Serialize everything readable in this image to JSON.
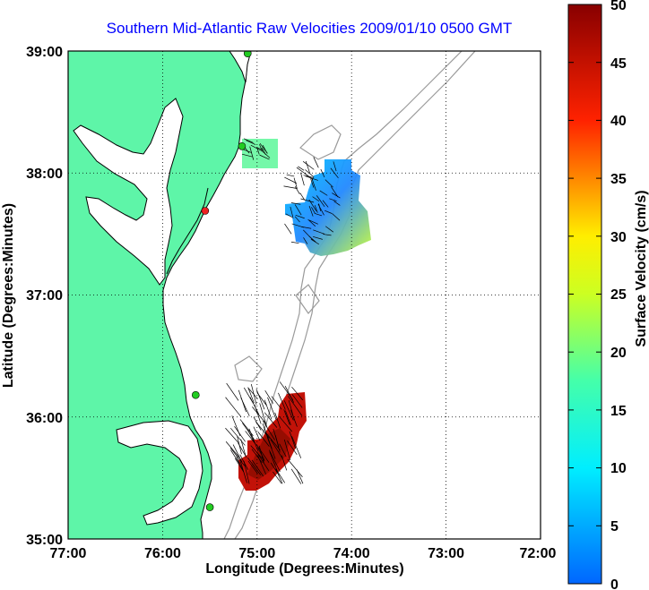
{
  "title": "Southern Mid-Atlantic Raw Velocities 2009/01/10 0500 GMT",
  "axes": {
    "xlabel": "Longitude (Degrees:Minutes)",
    "ylabel": "Latitude (Degrees:Minutes)",
    "x_ticks": [
      "77:00",
      "76:00",
      "75:00",
      "74:00",
      "73:00",
      "72:00"
    ],
    "y_ticks": [
      "39:00",
      "38:00",
      "37:00",
      "36:00",
      "35:00"
    ],
    "x_range_deg_west": [
      77,
      72
    ],
    "y_range_deg_north": [
      35,
      39
    ],
    "grid": "dotted"
  },
  "colorbar": {
    "label": "Surface Velocity (cm/s)",
    "ticks": [
      "50",
      "45",
      "40",
      "35",
      "30",
      "25",
      "20",
      "15",
      "10",
      "5",
      "0"
    ],
    "range": [
      0,
      50
    ],
    "colormap": "jet"
  },
  "colors": {
    "land": "#5ef5a8",
    "water": "#ffffff",
    "coastline": "#000000",
    "bathymetry": "#9a9a9a",
    "title": "#0000ff",
    "station": "#22cc22",
    "station_offline": "#ee2222"
  },
  "chart_data": {
    "type": "map",
    "title": "Southern Mid-Atlantic Raw Velocities 2009/01/10 0500 GMT",
    "xlabel": "Longitude (Degrees:Minutes)",
    "ylabel": "Latitude (Degrees:Minutes)",
    "colorbar_label": "Surface Velocity (cm/s)",
    "colorbar_range": [
      0,
      50
    ],
    "grid": true,
    "stations": [
      {
        "lon": -75.1,
        "lat": 38.98,
        "status": "online"
      },
      {
        "lon": -75.16,
        "lat": 38.22,
        "status": "online"
      },
      {
        "lon": -75.55,
        "lat": 37.69,
        "status": "offline"
      },
      {
        "lon": -75.65,
        "lat": 36.18,
        "status": "online"
      },
      {
        "lon": -75.5,
        "lat": 35.26,
        "status": "online"
      }
    ],
    "velocity_regions": [
      {
        "name": "",
        "lon_range": [
          -75.1,
          -74.75
        ],
        "lat_range": [
          38.1,
          38.25
        ],
        "speed_cm_s": [
          12,
          20
        ]
      },
      {
        "name": "",
        "lon_range": [
          -74.65,
          -74.1
        ],
        "lat_range": [
          37.4,
          38.05
        ],
        "speed_cm_s": [
          5,
          28
        ]
      },
      {
        "name": "",
        "lon_range": [
          -75.2,
          -74.5
        ],
        "lat_range": [
          35.45,
          36.15
        ],
        "speed_cm_s": [
          44,
          50
        ]
      }
    ]
  }
}
